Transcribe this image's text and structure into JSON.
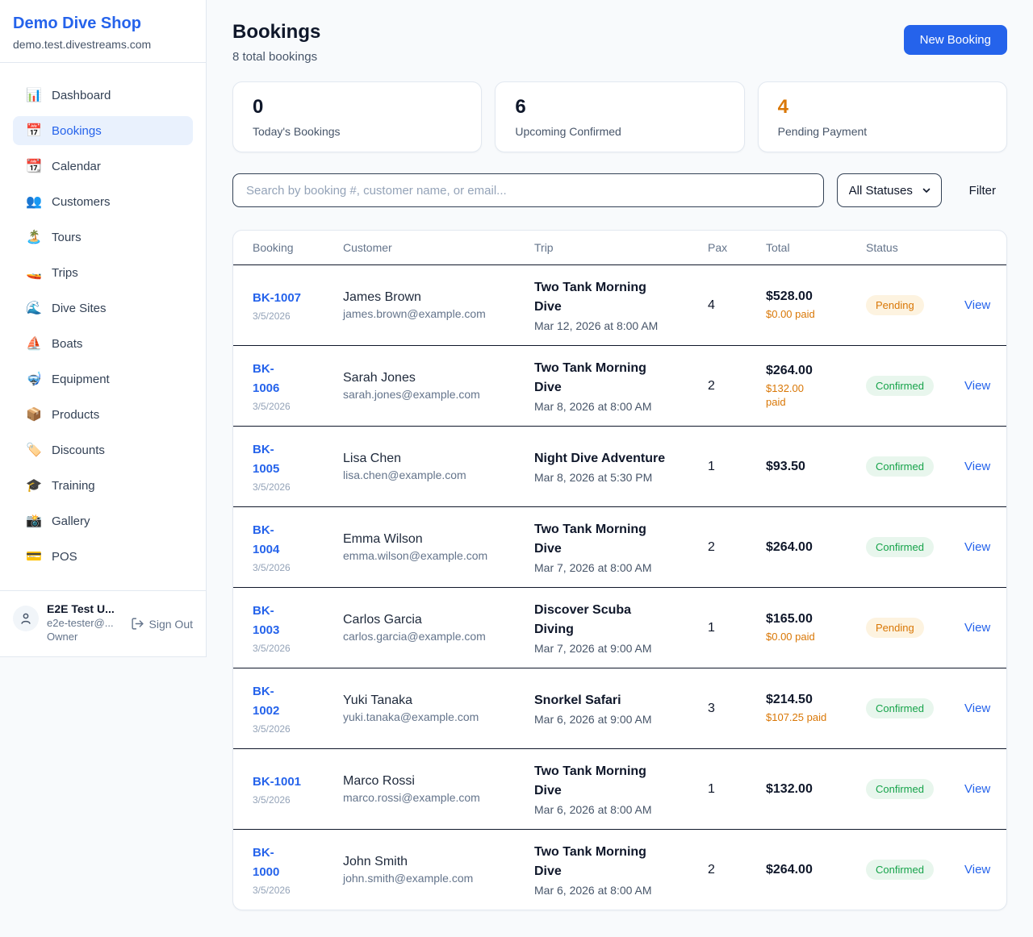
{
  "colors": {
    "brand_blue": "#2563eb",
    "pending_orange": "#d97706",
    "pending_badge_bg": "#fdf3e0",
    "confirmed_green": "#16a34a",
    "confirmed_badge_bg": "#e8f6ed"
  },
  "sidebar": {
    "brand": {
      "name": "Demo Dive Shop",
      "domain": "demo.test.divestreams.com"
    },
    "items": [
      {
        "icon_name": "dashboard-icon",
        "icon": "📊",
        "label": "Dashboard",
        "active": false
      },
      {
        "icon_name": "bookings-icon",
        "icon": "📅",
        "label": "Bookings",
        "active": true
      },
      {
        "icon_name": "calendar-icon",
        "icon": "📆",
        "label": "Calendar",
        "active": false
      },
      {
        "icon_name": "customers-icon",
        "icon": "👥",
        "label": "Customers",
        "active": false
      },
      {
        "icon_name": "tours-icon",
        "icon": "🏝️",
        "label": "Tours",
        "active": false
      },
      {
        "icon_name": "trips-icon",
        "icon": "🚤",
        "label": "Trips",
        "active": false
      },
      {
        "icon_name": "dive-sites-icon",
        "icon": "🌊",
        "label": "Dive Sites",
        "active": false
      },
      {
        "icon_name": "boats-icon",
        "icon": "⛵",
        "label": "Boats",
        "active": false
      },
      {
        "icon_name": "equipment-icon",
        "icon": "🤿",
        "label": "Equipment",
        "active": false
      },
      {
        "icon_name": "products-icon",
        "icon": "📦",
        "label": "Products",
        "active": false
      },
      {
        "icon_name": "discounts-icon",
        "icon": "🏷️",
        "label": "Discounts",
        "active": false
      },
      {
        "icon_name": "training-icon",
        "icon": "🎓",
        "label": "Training",
        "active": false
      },
      {
        "icon_name": "gallery-icon",
        "icon": "📸",
        "label": "Gallery",
        "active": false
      },
      {
        "icon_name": "pos-icon",
        "icon": "💳",
        "label": "POS",
        "active": false
      }
    ],
    "user": {
      "name": "E2E Test U...",
      "email": "e2e-tester@...",
      "role": "Owner",
      "sign_out_label": "Sign Out"
    }
  },
  "header": {
    "title": "Bookings",
    "subtitle": "8 total bookings",
    "new_booking_label": "New Booking"
  },
  "stats": [
    {
      "value": "0",
      "label": "Today's Bookings",
      "highlight": false
    },
    {
      "value": "6",
      "label": "Upcoming Confirmed",
      "highlight": false
    },
    {
      "value": "4",
      "label": "Pending Payment",
      "highlight": true
    }
  ],
  "filters": {
    "search_placeholder": "Search by booking #, customer name, or email...",
    "status_value": "All Statuses",
    "filter_label": "Filter"
  },
  "table": {
    "columns": [
      "Booking",
      "Customer",
      "Trip",
      "Pax",
      "Total",
      "Status"
    ],
    "view_label": "View",
    "rows": [
      {
        "id": "BK-1007",
        "date": "3/5/2026",
        "customer": "James Brown",
        "email": "james.brown@example.com",
        "trip": "Two Tank Morning\nDive",
        "trip_time": "Mar 12, 2026 at 8:00 AM",
        "pax": "4",
        "total": "$528.00",
        "paid": "$0.00 paid",
        "status": "Pending"
      },
      {
        "id": "BK-\n1006",
        "date": "3/5/2026",
        "customer": "Sarah Jones",
        "email": "sarah.jones@example.com",
        "trip": "Two Tank Morning\nDive",
        "trip_time": "Mar 8, 2026 at 8:00 AM",
        "pax": "2",
        "total": "$264.00",
        "paid": "$132.00\npaid",
        "status": "Confirmed"
      },
      {
        "id": "BK-\n1005",
        "date": "3/5/2026",
        "customer": "Lisa Chen",
        "email": "lisa.chen@example.com",
        "trip": "Night Dive Adventure",
        "trip_time": "Mar 8, 2026 at 5:30 PM",
        "pax": "1",
        "total": "$93.50",
        "paid": "",
        "status": "Confirmed"
      },
      {
        "id": "BK-\n1004",
        "date": "3/5/2026",
        "customer": "Emma Wilson",
        "email": "emma.wilson@example.com",
        "trip": "Two Tank Morning\nDive",
        "trip_time": "Mar 7, 2026 at 8:00 AM",
        "pax": "2",
        "total": "$264.00",
        "paid": "",
        "status": "Confirmed"
      },
      {
        "id": "BK-\n1003",
        "date": "3/5/2026",
        "customer": "Carlos Garcia",
        "email": "carlos.garcia@example.com",
        "trip": "Discover Scuba\nDiving",
        "trip_time": "Mar 7, 2026 at 9:00 AM",
        "pax": "1",
        "total": "$165.00",
        "paid": "$0.00 paid",
        "status": "Pending"
      },
      {
        "id": "BK-\n1002",
        "date": "3/5/2026",
        "customer": "Yuki Tanaka",
        "email": "yuki.tanaka@example.com",
        "trip": "Snorkel Safari",
        "trip_time": "Mar 6, 2026 at 9:00 AM",
        "pax": "3",
        "total": "$214.50",
        "paid": "$107.25 paid",
        "status": "Confirmed"
      },
      {
        "id": "BK-1001",
        "date": "3/5/2026",
        "customer": "Marco Rossi",
        "email": "marco.rossi@example.com",
        "trip": "Two Tank Morning\nDive",
        "trip_time": "Mar 6, 2026 at 8:00 AM",
        "pax": "1",
        "total": "$132.00",
        "paid": "",
        "status": "Confirmed"
      },
      {
        "id": "BK-\n1000",
        "date": "3/5/2026",
        "customer": "John Smith",
        "email": "john.smith@example.com",
        "trip": "Two Tank Morning\nDive",
        "trip_time": "Mar 6, 2026 at 8:00 AM",
        "pax": "2",
        "total": "$264.00",
        "paid": "",
        "status": "Confirmed"
      }
    ]
  }
}
